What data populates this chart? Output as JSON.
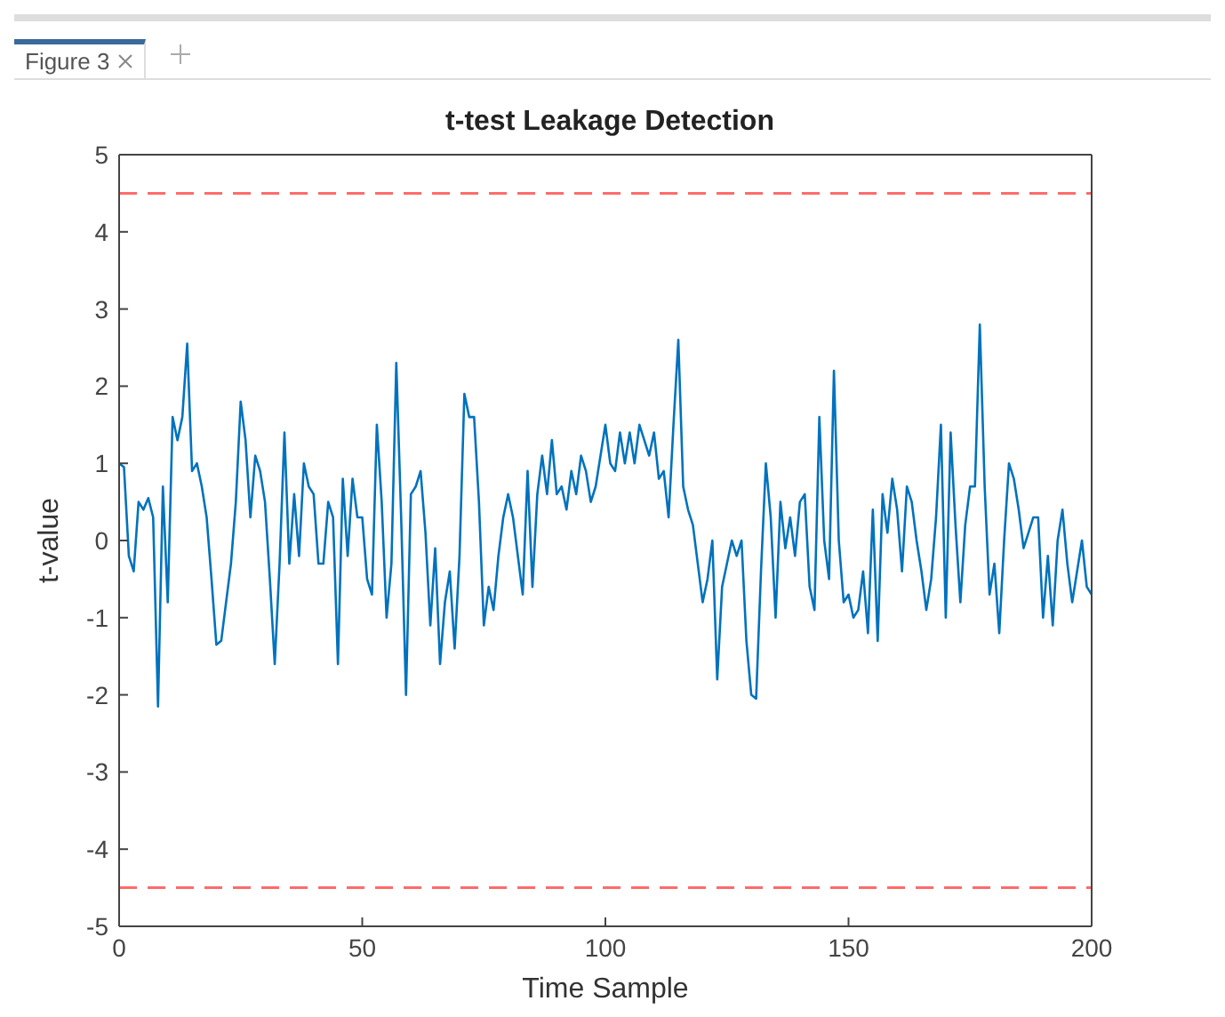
{
  "chart_data": {
    "type": "line",
    "title": "t-test Leakage Detection",
    "xlabel": "Time Sample",
    "ylabel": "t-value",
    "annotations": [
      "Figure 3"
    ],
    "x": [
      0,
      1,
      2,
      3,
      4,
      5,
      6,
      7,
      8,
      9,
      10,
      11,
      12,
      13,
      14,
      15,
      16,
      17,
      18,
      19,
      20,
      21,
      22,
      23,
      24,
      25,
      26,
      27,
      28,
      29,
      30,
      31,
      32,
      33,
      34,
      35,
      36,
      37,
      38,
      39,
      40,
      41,
      42,
      43,
      44,
      45,
      46,
      47,
      48,
      49,
      50,
      51,
      52,
      53,
      54,
      55,
      56,
      57,
      58,
      59,
      60,
      61,
      62,
      63,
      64,
      65,
      66,
      67,
      68,
      69,
      70,
      71,
      72,
      73,
      74,
      75,
      76,
      77,
      78,
      79,
      80,
      81,
      82,
      83,
      84,
      85,
      86,
      87,
      88,
      89,
      90,
      91,
      92,
      93,
      94,
      95,
      96,
      97,
      98,
      99,
      100,
      101,
      102,
      103,
      104,
      105,
      106,
      107,
      108,
      109,
      110,
      111,
      112,
      113,
      114,
      115,
      116,
      117,
      118,
      119,
      120,
      121,
      122,
      123,
      124,
      125,
      126,
      127,
      128,
      129,
      130,
      131,
      132,
      133,
      134,
      135,
      136,
      137,
      138,
      139,
      140,
      141,
      142,
      143,
      144,
      145,
      146,
      147,
      148,
      149,
      150,
      151,
      152,
      153,
      154,
      155,
      156,
      157,
      158,
      159,
      160,
      161,
      162,
      163,
      164,
      165,
      166,
      167,
      168,
      169,
      170,
      171,
      172,
      173,
      174,
      175,
      176,
      177,
      178,
      179,
      180,
      181,
      182,
      183,
      184,
      185,
      186,
      187,
      188,
      189,
      190,
      191,
      192,
      193,
      194,
      195,
      196,
      197,
      198,
      199,
      200
    ],
    "series": [
      {
        "color": "#0072bd",
        "values": [
          1.0,
          0.95,
          -0.2,
          -0.4,
          0.5,
          0.4,
          0.55,
          0.3,
          -2.15,
          0.7,
          -0.8,
          1.6,
          1.3,
          1.6,
          2.55,
          0.9,
          1.0,
          0.7,
          0.3,
          -0.5,
          -1.35,
          -1.3,
          -0.8,
          -0.3,
          0.5,
          1.8,
          1.3,
          0.3,
          1.1,
          0.9,
          0.5,
          -0.5,
          -1.6,
          -0.3,
          1.4,
          -0.3,
          0.6,
          -0.2,
          1.0,
          0.7,
          0.6,
          -0.3,
          -0.3,
          0.5,
          0.3,
          -1.6,
          0.8,
          -0.2,
          0.8,
          0.3,
          0.3,
          -0.5,
          -0.7,
          1.5,
          0.5,
          -1.0,
          -0.3,
          2.3,
          0.3,
          -2.0,
          0.6,
          0.7,
          0.9,
          0.1,
          -1.1,
          -0.1,
          -1.6,
          -0.8,
          -0.4,
          -1.4,
          -0.2,
          1.9,
          1.6,
          1.6,
          0.5,
          -1.1,
          -0.6,
          -0.9,
          -0.2,
          0.3,
          0.6,
          0.3,
          -0.2,
          -0.7,
          0.9,
          -0.6,
          0.6,
          1.1,
          0.6,
          1.3,
          0.6,
          0.7,
          0.4,
          0.9,
          0.6,
          1.1,
          0.9,
          0.5,
          0.7,
          1.1,
          1.5,
          1.0,
          0.9,
          1.4,
          1.0,
          1.4,
          1.0,
          1.5,
          1.3,
          1.1,
          1.4,
          0.8,
          0.9,
          0.3,
          1.5,
          2.6,
          0.7,
          0.4,
          0.2,
          -0.3,
          -0.8,
          -0.5,
          0.0,
          -1.8,
          -0.6,
          -0.3,
          0.0,
          -0.2,
          0.0,
          -1.3,
          -2.0,
          -2.05,
          -0.4,
          1.0,
          0.3,
          -1.0,
          0.5,
          -0.1,
          0.3,
          -0.2,
          0.5,
          0.6,
          -0.6,
          -0.9,
          1.6,
          0.0,
          -0.5,
          2.2,
          0.0,
          -0.8,
          -0.7,
          -1.0,
          -0.9,
          -0.4,
          -1.2,
          0.4,
          -1.3,
          0.6,
          0.1,
          0.8,
          0.4,
          -0.4,
          0.7,
          0.5,
          0.0,
          -0.4,
          -0.9,
          -0.5,
          0.3,
          1.5,
          -1.0,
          1.4,
          0.2,
          -0.8,
          0.2,
          0.7,
          0.7,
          2.8,
          0.7,
          -0.7,
          -0.3,
          -1.2,
          0.0,
          1.0,
          0.8,
          0.4,
          -0.1,
          0.1,
          0.3,
          0.3,
          -1.0,
          -0.2,
          -1.1,
          0.0,
          0.4,
          -0.3,
          -0.8,
          -0.4,
          0.0,
          -0.6,
          -0.7
        ]
      }
    ],
    "xlim": [
      0,
      200
    ],
    "xticks": [
      0,
      50,
      100,
      150,
      200
    ],
    "ylim": [
      -5,
      5
    ],
    "yticks": [
      -5,
      -4,
      -3,
      -2,
      -1,
      0,
      1,
      2,
      3,
      4,
      5
    ],
    "ref_lines": [
      {
        "axis": "y",
        "value": 4.5,
        "color": "#ff6b6b",
        "line_style": "dashed"
      },
      {
        "axis": "y",
        "value": -4.5,
        "color": "#ff6b6b",
        "line_style": "dashed"
      }
    ],
    "grid": false,
    "legend": false,
    "marker": "none",
    "line_style": "solid"
  }
}
